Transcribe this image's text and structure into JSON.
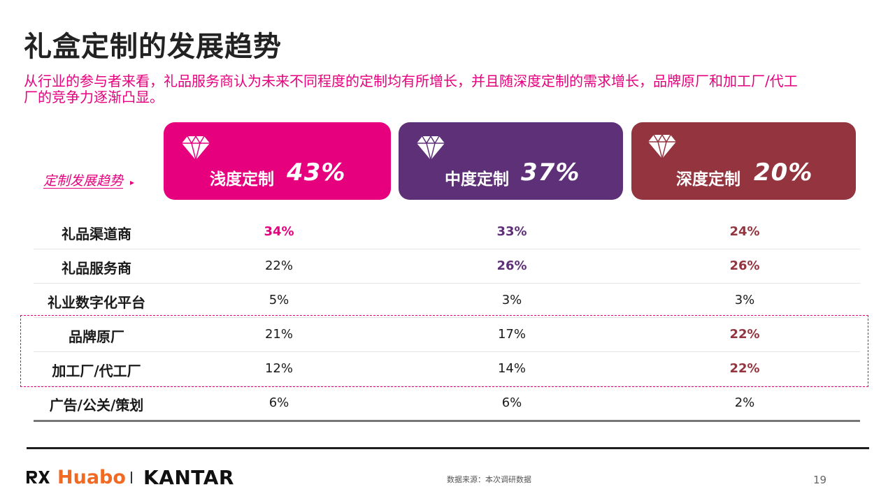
{
  "title": "礼盒定制的发展趋势",
  "subtitle": "从行业的参与者来看，礼品服务商认为未来不同程度的定制均有所增长，并且随深度定制的需求增长，品牌原厂和加工厂/代工厂的竞争力逐渐凸显。",
  "trend_label": "定制发展趋势",
  "trend_arrow": "▸",
  "colors": {
    "shallow": "#e6007e",
    "medium": "#5e3078",
    "deep": "#93343f",
    "accent": "#e6007e"
  },
  "chart_data": {
    "type": "table",
    "columns": [
      {
        "label": "浅度定制",
        "total": "43%",
        "icon": "diamond-icon"
      },
      {
        "label": "中度定制",
        "total": "37%",
        "icon": "diamond-icon"
      },
      {
        "label": "深度定制",
        "total": "20%",
        "icon": "diamond-icon"
      }
    ],
    "rows": [
      {
        "label": "礼品渠道商",
        "values": [
          "34%",
          "33%",
          "24%"
        ],
        "highlight": [
          true,
          true,
          true
        ]
      },
      {
        "label": "礼品服务商",
        "values": [
          "22%",
          "26%",
          "26%"
        ],
        "highlight": [
          false,
          true,
          true
        ]
      },
      {
        "label": "礼业数字化平台",
        "values": [
          "5%",
          "3%",
          "3%"
        ],
        "highlight": [
          false,
          false,
          false
        ]
      },
      {
        "label": "品牌原厂",
        "values": [
          "21%",
          "17%",
          "22%"
        ],
        "highlight": [
          false,
          false,
          true
        ]
      },
      {
        "label": "加工厂/代工厂",
        "values": [
          "12%",
          "14%",
          "22%"
        ],
        "highlight": [
          false,
          false,
          true
        ]
      },
      {
        "label": "广告/公关/策划",
        "values": [
          "6%",
          "6%",
          "2%"
        ],
        "highlight": [
          false,
          false,
          false
        ]
      }
    ]
  },
  "footer": {
    "brand1": "Huabo",
    "brand2": "KANTAR",
    "source": "数据来源：本次调研数据",
    "page": "19"
  }
}
